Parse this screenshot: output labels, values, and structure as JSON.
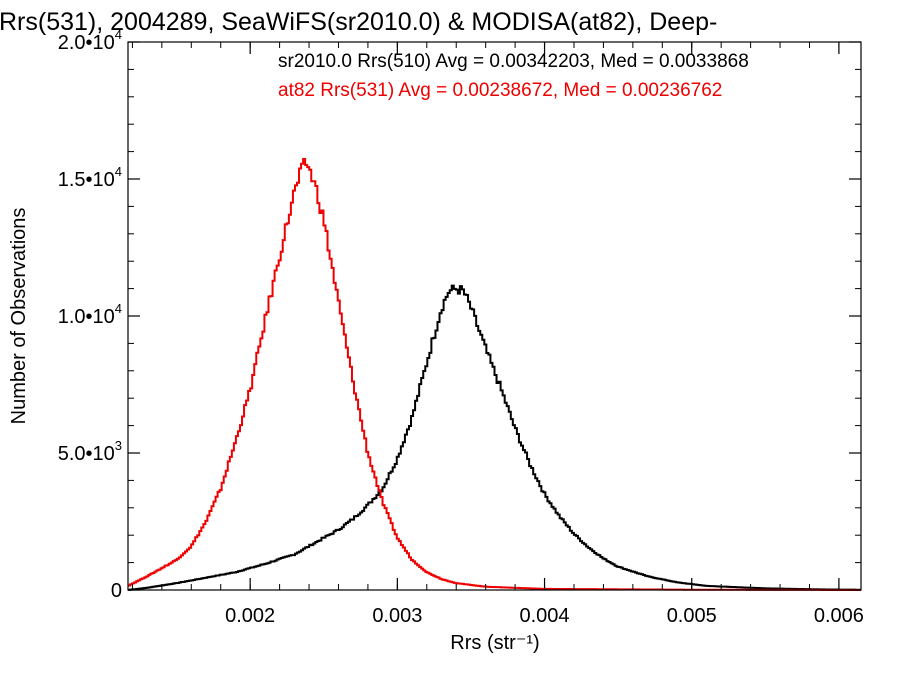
{
  "chart_data": {
    "type": "histogram",
    "title": "Rrs(531), 2004289, SeaWiFS(sr2010.0) & MODISA(at82), Deep-",
    "xlabel": "Rrs (str⁻¹)",
    "ylabel": "Number of Observations",
    "xlim": [
      0.00117,
      0.00615
    ],
    "ylim": [
      0,
      20000
    ],
    "xticks": [
      0.002,
      0.003,
      0.004,
      0.005,
      0.006
    ],
    "xtick_labels": [
      "0.002",
      "0.003",
      "0.004",
      "0.005",
      "0.006"
    ],
    "yticks": [
      0,
      5000,
      10000,
      15000,
      20000
    ],
    "ytick_labels": [
      {
        "text": "0",
        "mantissa": "0",
        "exponent": ""
      },
      {
        "text": "5.0•10³",
        "mantissa": "5.0•10",
        "exponent": "3"
      },
      {
        "text": "1.0•10⁴",
        "mantissa": "1.0•10",
        "exponent": "4"
      },
      {
        "text": "1.5•10⁴",
        "mantissa": "1.5•10",
        "exponent": "4"
      },
      {
        "text": "2.0•10⁴",
        "mantissa": "2.0•10",
        "exponent": "4"
      }
    ],
    "grid": false,
    "legend": [
      {
        "text": "sr2010.0 Rrs(510) Avg = 0.00342203, Med = 0.0033868",
        "color": "#000000"
      },
      {
        "text": "at82 Rrs(531) Avg = 0.00238672, Med = 0.00236762",
        "color": "#ee0000"
      }
    ],
    "legend_position": "top-right",
    "series": [
      {
        "color": "#000000",
        "step": true,
        "points": [
          [
            0.00117,
            0
          ],
          [
            0.0013,
            80
          ],
          [
            0.0015,
            250
          ],
          [
            0.0017,
            450
          ],
          [
            0.0019,
            650
          ],
          [
            0.0021,
            950
          ],
          [
            0.0023,
            1300
          ],
          [
            0.0025,
            1900
          ],
          [
            0.0026,
            2200
          ],
          [
            0.0027,
            2600
          ],
          [
            0.0028,
            3100
          ],
          [
            0.0029,
            3700
          ],
          [
            0.003,
            4800
          ],
          [
            0.0031,
            6300
          ],
          [
            0.0032,
            8300
          ],
          [
            0.00325,
            9300
          ],
          [
            0.0033,
            10300
          ],
          [
            0.00335,
            10900
          ],
          [
            0.0034,
            11000
          ],
          [
            0.00345,
            10900
          ],
          [
            0.0035,
            10300
          ],
          [
            0.0036,
            8800
          ],
          [
            0.0037,
            7400
          ],
          [
            0.0038,
            5900
          ],
          [
            0.0039,
            4600
          ],
          [
            0.004,
            3500
          ],
          [
            0.0041,
            2700
          ],
          [
            0.0042,
            2050
          ],
          [
            0.0043,
            1550
          ],
          [
            0.0044,
            1150
          ],
          [
            0.0045,
            850
          ],
          [
            0.0047,
            500
          ],
          [
            0.0049,
            280
          ],
          [
            0.0051,
            150
          ],
          [
            0.0055,
            60
          ],
          [
            0.0059,
            20
          ],
          [
            0.00615,
            10
          ]
        ]
      },
      {
        "color": "#ee0000",
        "step": true,
        "points": [
          [
            0.00117,
            150
          ],
          [
            0.0013,
            500
          ],
          [
            0.0015,
            1100
          ],
          [
            0.0016,
            1600
          ],
          [
            0.0017,
            2500
          ],
          [
            0.0018,
            3700
          ],
          [
            0.0019,
            5400
          ],
          [
            0.002,
            7300
          ],
          [
            0.0021,
            9800
          ],
          [
            0.0022,
            12200
          ],
          [
            0.0023,
            14500
          ],
          [
            0.00235,
            15300
          ],
          [
            0.00238,
            15600
          ],
          [
            0.0024,
            15400
          ],
          [
            0.00245,
            14600
          ],
          [
            0.0025,
            13500
          ],
          [
            0.0026,
            10500
          ],
          [
            0.0027,
            7600
          ],
          [
            0.0028,
            5000
          ],
          [
            0.0029,
            3200
          ],
          [
            0.003,
            1900
          ],
          [
            0.0031,
            1100
          ],
          [
            0.0032,
            650
          ],
          [
            0.0033,
            400
          ],
          [
            0.0034,
            250
          ],
          [
            0.0036,
            120
          ],
          [
            0.004,
            40
          ],
          [
            0.005,
            10
          ],
          [
            0.00615,
            0
          ]
        ]
      }
    ]
  }
}
